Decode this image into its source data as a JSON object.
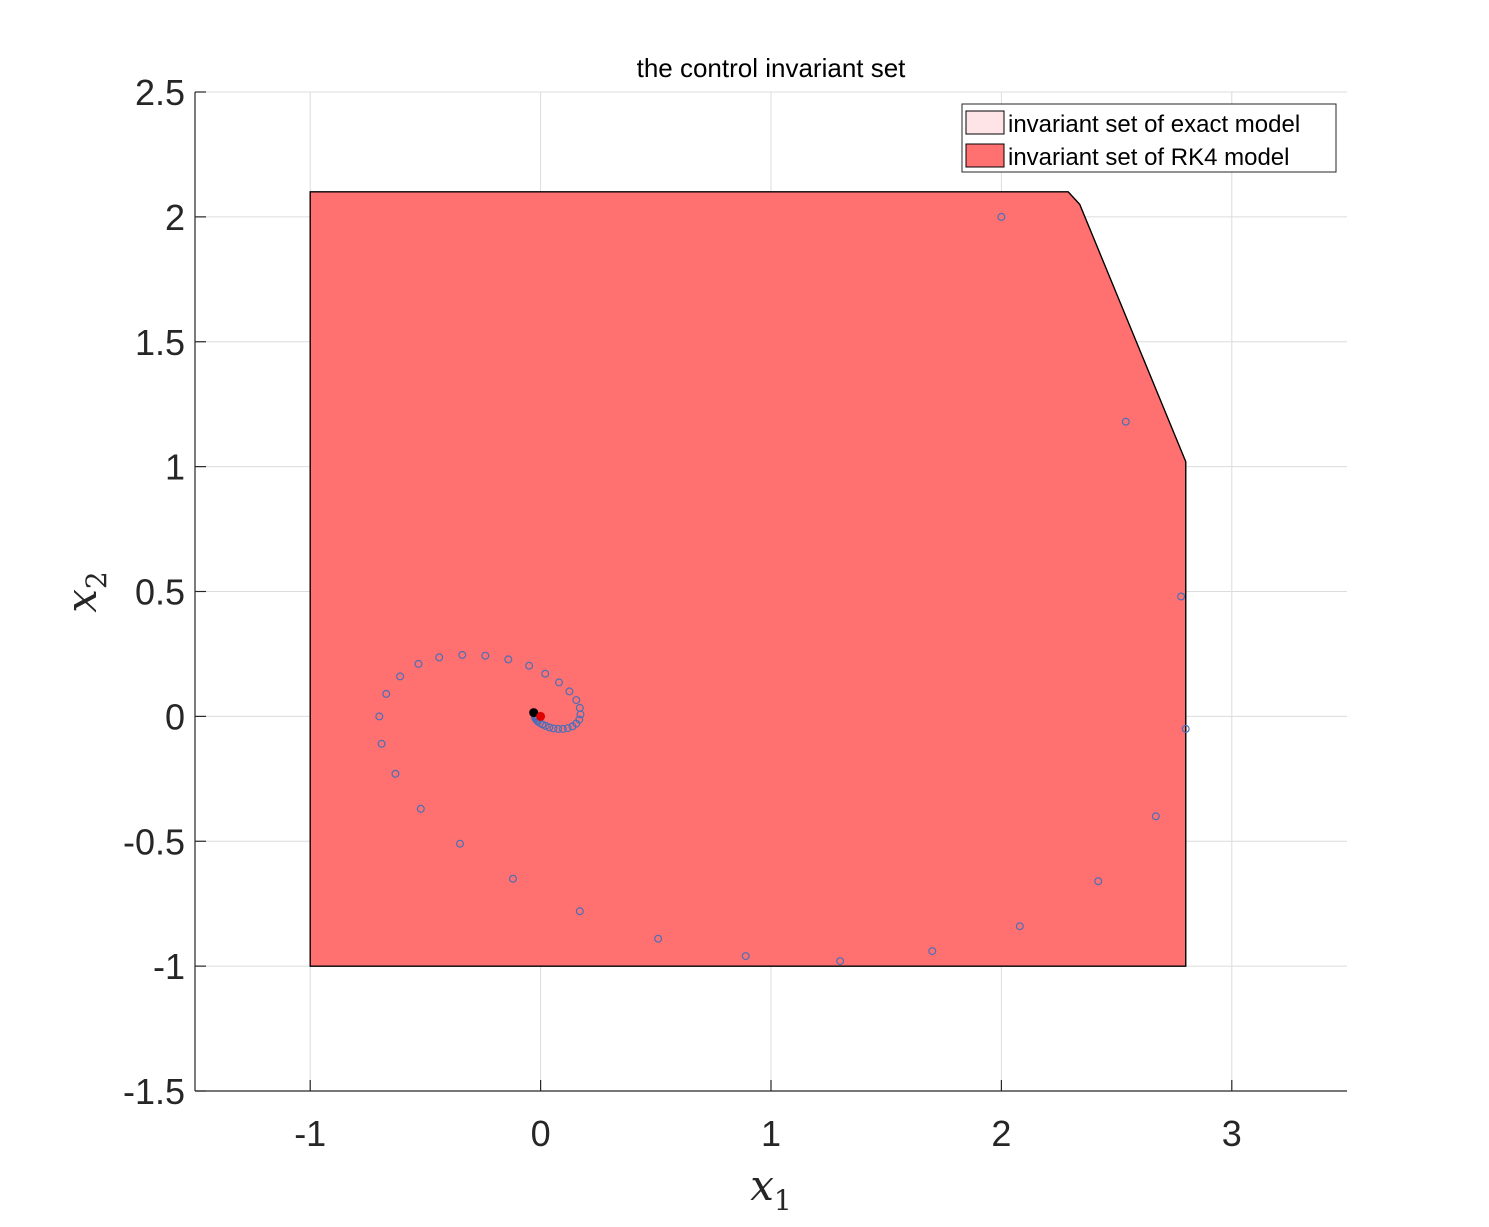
{
  "chart_data": {
    "type": "scatter",
    "title": "the control invariant set",
    "xlabel": {
      "symbol": "x",
      "subscript": "1"
    },
    "ylabel": {
      "symbol": "x",
      "subscript": "2"
    },
    "xlim": [
      -1.5,
      3.5
    ],
    "ylim": [
      -1.5,
      2.5
    ],
    "xticks": [
      -1,
      0,
      1,
      2,
      3
    ],
    "xtick_labels": [
      "-1",
      "0",
      "1",
      "2",
      "3"
    ],
    "yticks": [
      -1.5,
      -1,
      -0.5,
      0,
      0.5,
      1,
      1.5,
      2,
      2.5
    ],
    "ytick_labels": [
      "-1.5",
      "-1",
      "-0.5",
      "0",
      "0.5",
      "1",
      "1.5",
      "2",
      "2.5"
    ],
    "grid": true,
    "legend_position": "top-right",
    "legend": [
      {
        "label": "invariant set of exact model",
        "color": "#ffe4e7"
      },
      {
        "label": "invariant set of RK4 model",
        "color": "#ff7070"
      }
    ],
    "regions": [
      {
        "name": "invariant set of exact model",
        "color": "#ffe4e7",
        "polygon": [
          [
            -1,
            -1
          ],
          [
            2.8,
            -1
          ],
          [
            2.8,
            1.02
          ],
          [
            2.34,
            2.05
          ],
          [
            2.29,
            2.1
          ],
          [
            -1,
            2.1
          ]
        ]
      },
      {
        "name": "invariant set of RK4 model",
        "color": "#ff7070",
        "polygon": [
          [
            -1,
            -1
          ],
          [
            2.8,
            -1
          ],
          [
            2.8,
            1.02
          ],
          [
            2.34,
            2.05
          ],
          [
            2.29,
            2.1
          ],
          [
            -1,
            2.1
          ]
        ]
      }
    ],
    "series": [
      {
        "marker": "circle-open",
        "color": "#4a6fb8",
        "points": [
          [
            2.0,
            2.0
          ],
          [
            2.54,
            1.18
          ],
          [
            2.78,
            0.48
          ],
          [
            2.8,
            -0.05
          ],
          [
            2.67,
            -0.4
          ],
          [
            2.42,
            -0.66
          ],
          [
            2.08,
            -0.84
          ],
          [
            1.7,
            -0.94
          ],
          [
            1.3,
            -0.98
          ],
          [
            0.89,
            -0.96
          ],
          [
            0.51,
            -0.89
          ],
          [
            0.17,
            -0.78
          ],
          [
            -0.12,
            -0.65
          ],
          [
            -0.35,
            -0.51
          ],
          [
            -0.52,
            -0.37
          ],
          [
            -0.63,
            -0.23
          ],
          [
            -0.69,
            -0.11
          ],
          [
            -0.7,
            0.0
          ],
          [
            -0.67,
            0.09
          ],
          [
            -0.61,
            0.16
          ],
          [
            -0.53,
            0.21
          ],
          [
            -0.44,
            0.236
          ],
          [
            -0.34,
            0.246
          ],
          [
            -0.24,
            0.243
          ],
          [
            -0.14,
            0.228
          ],
          [
            -0.05,
            0.203
          ],
          [
            0.02,
            0.171
          ],
          [
            0.08,
            0.136
          ],
          [
            0.125,
            0.1
          ],
          [
            0.155,
            0.065
          ],
          [
            0.17,
            0.034
          ],
          [
            0.173,
            0.008
          ],
          [
            0.168,
            -0.013
          ],
          [
            0.155,
            -0.029
          ],
          [
            0.138,
            -0.04
          ],
          [
            0.118,
            -0.047
          ],
          [
            0.097,
            -0.05
          ],
          [
            0.076,
            -0.05
          ],
          [
            0.056,
            -0.048
          ],
          [
            0.038,
            -0.044
          ],
          [
            0.022,
            -0.038
          ],
          [
            0.008,
            -0.032
          ],
          [
            -0.003,
            -0.026
          ],
          [
            -0.012,
            -0.02
          ],
          [
            -0.018,
            -0.014
          ],
          [
            -0.022,
            -0.009
          ],
          [
            -0.024,
            -0.004
          ],
          [
            -0.024,
            0.0
          ],
          [
            -0.023,
            0.003
          ],
          [
            -0.021,
            0.005
          ]
        ]
      },
      {
        "marker": "filled-dot",
        "color": "#000000",
        "points": [
          [
            -0.03,
            0.015
          ]
        ]
      },
      {
        "marker": "filled-dot",
        "color": "#e00000",
        "points": [
          [
            0.0,
            0.0
          ]
        ]
      }
    ]
  }
}
